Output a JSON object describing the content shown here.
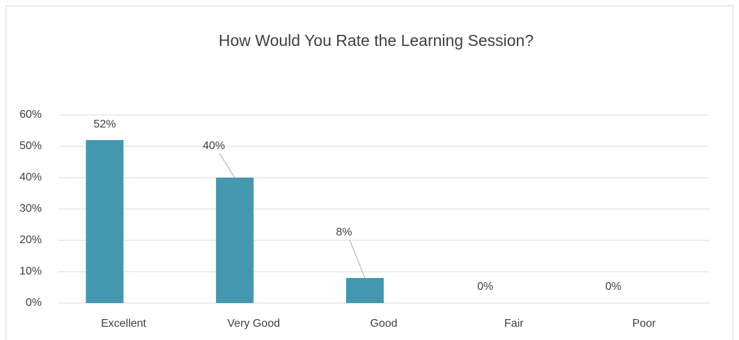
{
  "chart_data": {
    "type": "bar",
    "title": "How Would You Rate the Learning Session?",
    "categories": [
      "Excellent",
      "Very Good",
      "Good",
      "Fair",
      "Poor"
    ],
    "values": [
      52,
      40,
      8,
      0,
      0
    ],
    "value_labels": [
      "52%",
      "40%",
      "8%",
      "0%",
      "0%"
    ],
    "color": "#4398b0",
    "ylim": [
      0,
      60
    ],
    "yticks": [
      {
        "value": 0,
        "label": "0%"
      },
      {
        "value": 10,
        "label": "10%"
      },
      {
        "value": 20,
        "label": "20%"
      },
      {
        "value": 30,
        "label": "30%"
      },
      {
        "value": 40,
        "label": "40%"
      },
      {
        "value": 50,
        "label": "50%"
      },
      {
        "value": 60,
        "label": "60%"
      }
    ],
    "grid": true
  }
}
